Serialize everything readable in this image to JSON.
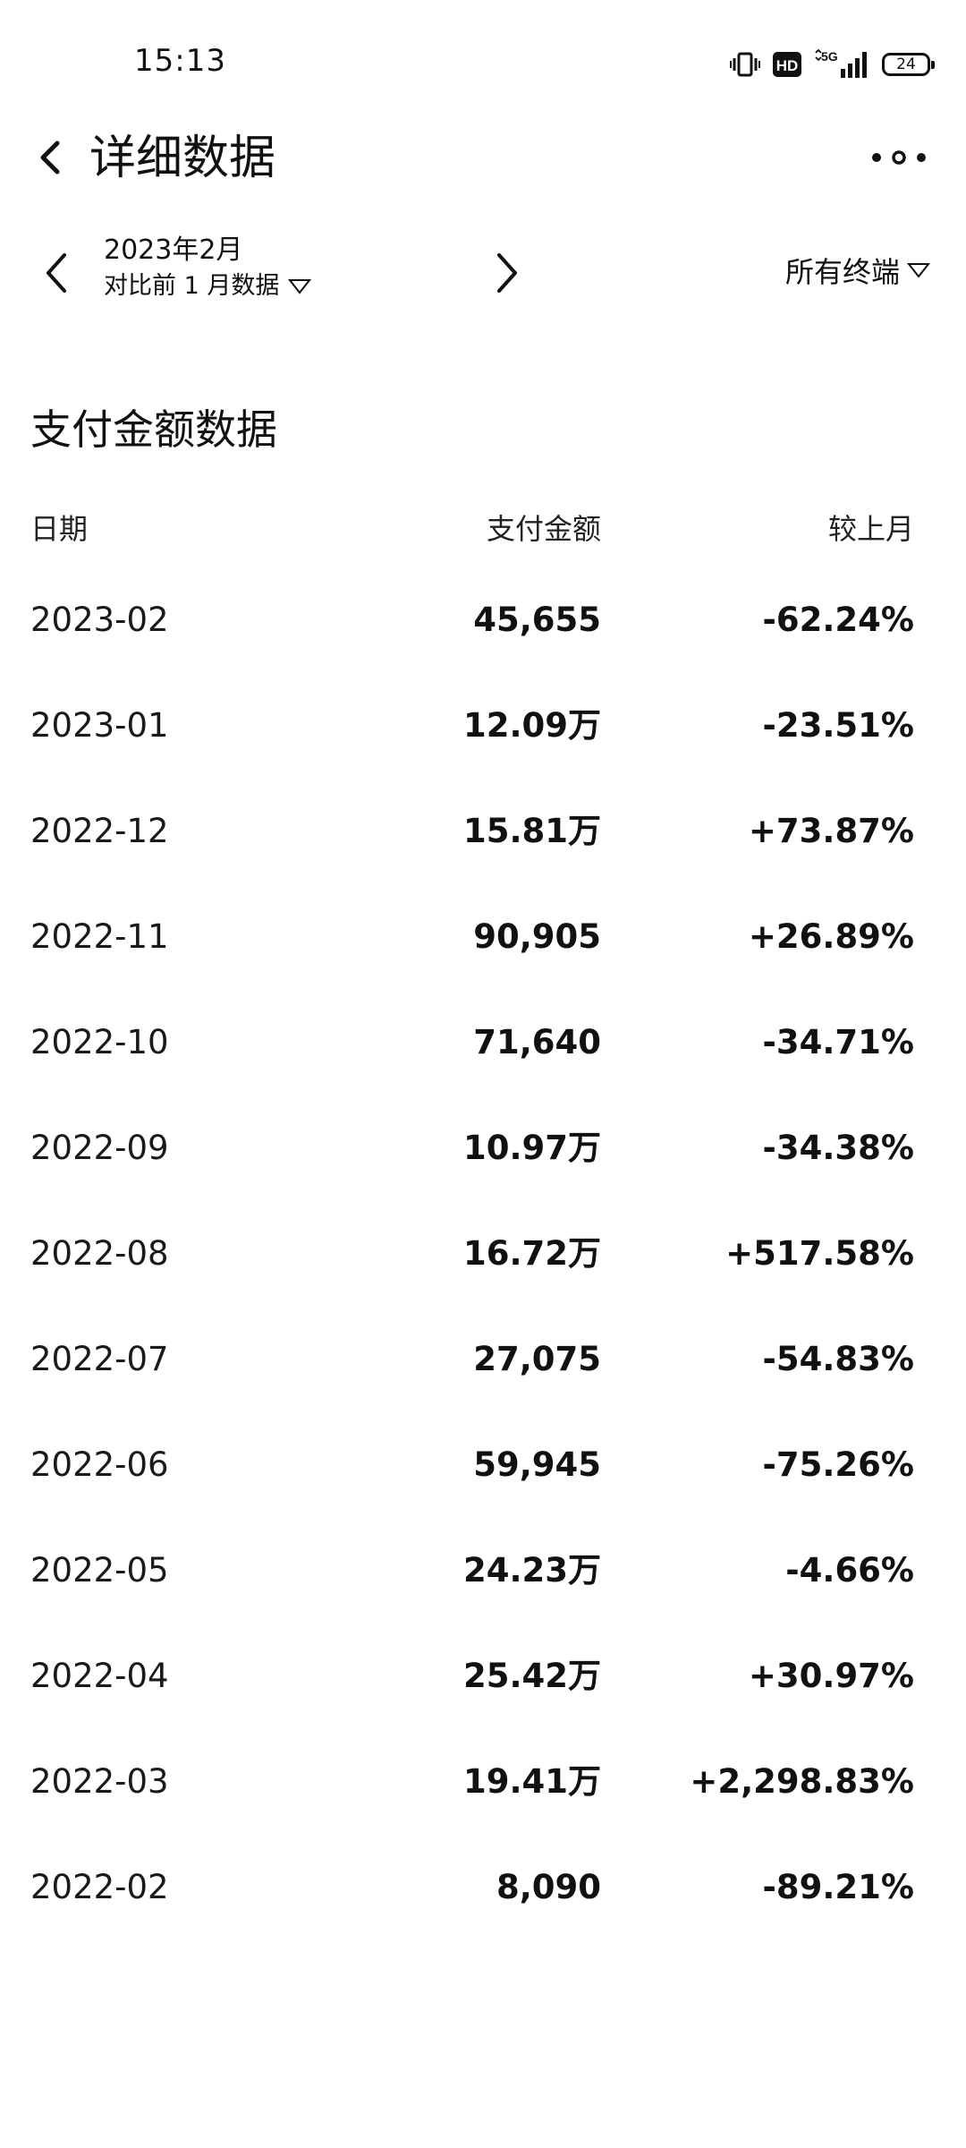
{
  "status_bar": {
    "time": "15:13",
    "network": "5G",
    "hd_badge": "HD",
    "battery": "24",
    "icons": [
      "vibrate-icon",
      "hd-icon",
      "signal-5g-icon",
      "battery-icon"
    ]
  },
  "header": {
    "title": "详细数据",
    "back_icon": "chevron-left-icon",
    "more_icon": "more-dots-icon"
  },
  "filter": {
    "date": "2023年2月",
    "compare": "对比前 1 月数据",
    "terminal": "所有终端"
  },
  "section": {
    "title": "支付金额数据"
  },
  "table": {
    "headers": {
      "date": "日期",
      "amount": "支付金额",
      "change": "较上月"
    },
    "rows": [
      {
        "date": "2023-02",
        "amount": "45,655",
        "change": "-62.24%"
      },
      {
        "date": "2023-01",
        "amount": "12.09万",
        "change": "-23.51%"
      },
      {
        "date": "2022-12",
        "amount": "15.81万",
        "change": "+73.87%"
      },
      {
        "date": "2022-11",
        "amount": "90,905",
        "change": "+26.89%"
      },
      {
        "date": "2022-10",
        "amount": "71,640",
        "change": "-34.71%"
      },
      {
        "date": "2022-09",
        "amount": "10.97万",
        "change": "-34.38%"
      },
      {
        "date": "2022-08",
        "amount": "16.72万",
        "change": "+517.58%"
      },
      {
        "date": "2022-07",
        "amount": "27,075",
        "change": "-54.83%"
      },
      {
        "date": "2022-06",
        "amount": "59,945",
        "change": "-75.26%"
      },
      {
        "date": "2022-05",
        "amount": "24.23万",
        "change": "-4.66%"
      },
      {
        "date": "2022-04",
        "amount": "25.42万",
        "change": "+30.97%"
      },
      {
        "date": "2022-03",
        "amount": "19.41万",
        "change": "+2,298.83%"
      },
      {
        "date": "2022-02",
        "amount": "8,090",
        "change": "-89.21%"
      }
    ]
  }
}
